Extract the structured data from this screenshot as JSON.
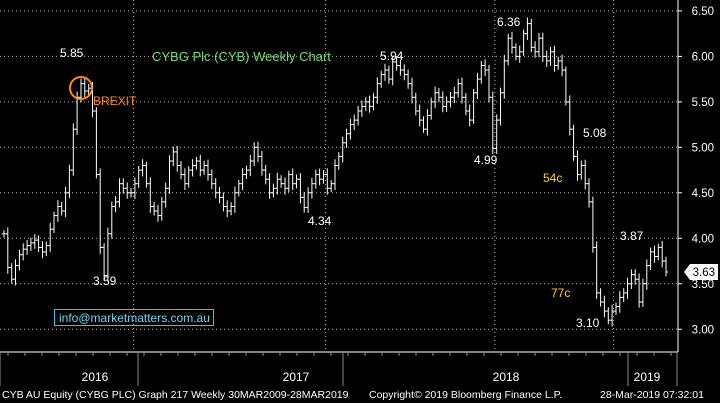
{
  "chart_data": {
    "type": "ohlc",
    "title": "CYBG Plc (CYB) Weekly Chart",
    "price_range": [
      2.75,
      6.62
    ],
    "y_ticks": [
      3.0,
      3.5,
      4.0,
      4.5,
      5.0,
      5.5,
      6.0,
      6.5
    ],
    "y_tick_labels": [
      "3.00",
      "3.50",
      "4.00",
      "4.50",
      "5.00",
      "5.50",
      "6.00",
      "6.50"
    ],
    "x_labels": [
      "2016",
      "2017",
      "2018",
      "2019"
    ],
    "last_price": "3.63",
    "closes": [
      4.05,
      3.68,
      3.55,
      3.7,
      3.82,
      3.88,
      3.92,
      3.95,
      3.98,
      3.9,
      3.85,
      3.92,
      4.1,
      4.25,
      4.35,
      4.3,
      4.5,
      4.75,
      5.2,
      5.55,
      5.7,
      5.62,
      5.65,
      5.4,
      4.7,
      3.9,
      3.59,
      4.05,
      4.35,
      4.4,
      4.6,
      4.55,
      4.5,
      4.5,
      4.6,
      4.75,
      4.8,
      4.6,
      4.35,
      4.3,
      4.25,
      4.4,
      4.55,
      4.85,
      4.95,
      4.8,
      4.7,
      4.6,
      4.75,
      4.8,
      4.85,
      4.75,
      4.8,
      4.7,
      4.6,
      4.5,
      4.45,
      4.35,
      4.3,
      4.35,
      4.5,
      4.6,
      4.7,
      4.75,
      4.85,
      5.0,
      4.9,
      4.75,
      4.65,
      4.5,
      4.55,
      4.65,
      4.6,
      4.55,
      4.7,
      4.6,
      4.65,
      4.45,
      4.34,
      4.5,
      4.6,
      4.7,
      4.65,
      4.7,
      4.55,
      4.6,
      4.8,
      4.9,
      5.05,
      5.15,
      5.25,
      5.3,
      5.4,
      5.45,
      5.5,
      5.45,
      5.55,
      5.7,
      5.8,
      5.85,
      5.75,
      5.94,
      5.9,
      5.85,
      5.8,
      5.7,
      5.55,
      5.4,
      5.3,
      5.2,
      5.35,
      5.5,
      5.6,
      5.55,
      5.45,
      5.5,
      5.55,
      5.6,
      5.7,
      5.55,
      5.4,
      5.3,
      5.6,
      5.75,
      5.9,
      5.85,
      5.55,
      4.99,
      5.3,
      5.6,
      5.95,
      6.2,
      6.1,
      6.0,
      6.05,
      6.25,
      6.36,
      6.1,
      6.05,
      6.2,
      6.0,
      5.95,
      6.05,
      5.9,
      5.95,
      5.85,
      5.5,
      5.2,
      4.9,
      4.7,
      4.8,
      4.6,
      4.4,
      3.9,
      3.4,
      3.3,
      3.2,
      3.1,
      3.2,
      3.25,
      3.35,
      3.4,
      3.5,
      3.6,
      3.55,
      3.3,
      3.5,
      3.7,
      3.85,
      3.8,
      3.9,
      3.75,
      3.63
    ],
    "annotations": [
      {
        "text": "5.85",
        "price": 5.85,
        "color": "#ffffff"
      },
      {
        "text": "BREXIT",
        "price": 5.61,
        "color": "#ff8c1a"
      },
      {
        "text": "3.59",
        "price": 3.59,
        "color": "#ffffff"
      },
      {
        "text": "4.34",
        "price": 4.34,
        "color": "#ffffff"
      },
      {
        "text": "5.94",
        "price": 5.94,
        "color": "#ffffff"
      },
      {
        "text": "4.99",
        "price": 4.99,
        "color": "#ffffff"
      },
      {
        "text": "6.36",
        "price": 6.36,
        "color": "#ffffff"
      },
      {
        "text": "5.08",
        "price": 5.08,
        "color": "#ffffff"
      },
      {
        "text": "54c",
        "price": 4.76,
        "color": "#ffd21a"
      },
      {
        "text": "3.87",
        "price": 3.87,
        "color": "#ffffff"
      },
      {
        "text": "77c",
        "price": 3.42,
        "color": "#ffd21a"
      },
      {
        "text": "3.10",
        "price": 3.1,
        "color": "#ffffff"
      }
    ]
  },
  "watermark": "info@marketmatters.com.au",
  "footer": {
    "security": "CYB AU Equity (CYBG PLC) Graph 217  Weekly 30MAR2009-28MAR2019",
    "copyright": "Copyright© 2019 Bloomberg Finance L.P.",
    "timestamp": "28-Mar-2019 07:32:01"
  },
  "colors": {
    "background": "#000000",
    "grid": "#b9b9b9",
    "bars": "#ffffff",
    "title": "#6fe06f",
    "accent_orange": "#ff8c1a",
    "accent_yellow": "#ffd21a",
    "watermark": "#2fc4e8"
  }
}
